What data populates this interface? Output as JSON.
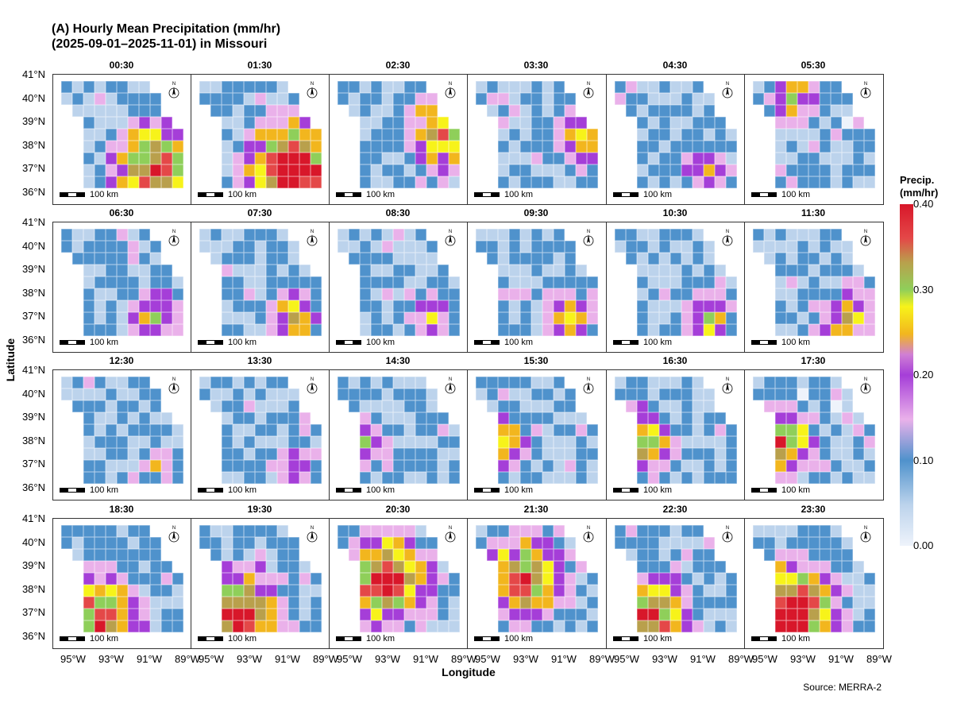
{
  "title_line1": "(A) Hourly Mean Precipitation (mm/hr)",
  "title_line2": "(2025-09-01–2025-11-01) in Missouri",
  "xlabel": "Longitude",
  "ylabel": "Latitude",
  "source": "Source: MERRA-2",
  "legend": {
    "title_line1": "Precip.",
    "title_line2": "(mm/hr)",
    "ticks": [
      "0.40",
      "0.30",
      "0.20",
      "0.10",
      "0.00"
    ]
  },
  "y_ticks": [
    "41°N",
    "40°N",
    "39°N",
    "38°N",
    "37°N",
    "36°N"
  ],
  "x_ticks": [
    "95°W",
    "93°W",
    "91°W",
    "89°W"
  ],
  "scale_label": "100 km",
  "north_label": "N",
  "panels": [
    {
      "time": "00:30",
      "level": 0.5,
      "hot": "se"
    },
    {
      "time": "01:30",
      "level": 0.55,
      "hot": "se"
    },
    {
      "time": "02:30",
      "level": 0.4,
      "hot": "e"
    },
    {
      "time": "03:30",
      "level": 0.3,
      "hot": "e"
    },
    {
      "time": "04:30",
      "level": 0.25,
      "hot": "se"
    },
    {
      "time": "05:30",
      "level": 0.3,
      "hot": "nw"
    },
    {
      "time": "06:30",
      "level": 0.3,
      "hot": "se"
    },
    {
      "time": "07:30",
      "level": 0.3,
      "hot": "se"
    },
    {
      "time": "08:30",
      "level": 0.25,
      "hot": "se"
    },
    {
      "time": "09:30",
      "level": 0.3,
      "hot": "se"
    },
    {
      "time": "10:30",
      "level": 0.3,
      "hot": "se"
    },
    {
      "time": "11:30",
      "level": 0.3,
      "hot": "se"
    },
    {
      "time": "12:30",
      "level": 0.2,
      "hot": "se"
    },
    {
      "time": "13:30",
      "level": 0.2,
      "hot": "se"
    },
    {
      "time": "14:30",
      "level": 0.25,
      "hot": "w"
    },
    {
      "time": "15:30",
      "level": 0.3,
      "hot": "w"
    },
    {
      "time": "16:30",
      "level": 0.35,
      "hot": "w"
    },
    {
      "time": "17:30",
      "level": 0.4,
      "hot": "w"
    },
    {
      "time": "18:30",
      "level": 0.45,
      "hot": "sw"
    },
    {
      "time": "19:30",
      "level": 0.5,
      "hot": "sw"
    },
    {
      "time": "20:30",
      "level": 0.5,
      "hot": "c"
    },
    {
      "time": "21:30",
      "level": 0.45,
      "hot": "c"
    },
    {
      "time": "22:30",
      "level": 0.45,
      "hot": "sw"
    },
    {
      "time": "23:30",
      "level": 0.55,
      "hot": "sw"
    }
  ]
}
